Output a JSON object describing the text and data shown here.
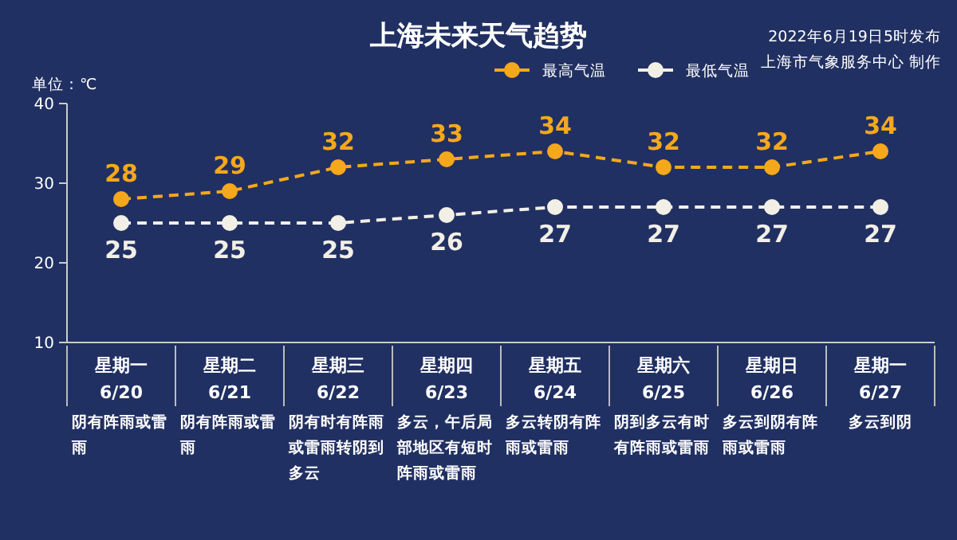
{
  "chart_data": {
    "type": "line",
    "title": "上海未来天气趋势",
    "subtitle": "2022年6月19日5时发布",
    "ylabel": "单位：℃",
    "annotations": [
      "上海市气象服务中心 制作",
      "阴有阵雨或雷雨",
      "阴有阵雨或雷雨",
      "阴有时有阵雨或雷雨转阴到多云",
      "多云，午后局部地区有短时阵雨或雷雨",
      "多云转阴有阵雨或雷雨",
      "阴到多云有时有阵雨或雷雨",
      "多云到阴有阵雨或雷雨",
      "多云到阴"
    ],
    "categories": [
      "星期一\n6/20",
      "星期二\n6/21",
      "星期三\n6/22",
      "星期四\n6/23",
      "星期五\n6/24",
      "星期六\n6/25",
      "星期日\n6/26",
      "星期一\n6/27"
    ],
    "series": [
      {
        "name": "最高气温",
        "color": "#f5a81c",
        "values": [
          28,
          29,
          32,
          33,
          34,
          32,
          32,
          34
        ]
      },
      {
        "name": "最低气温",
        "color": "#f2efe6",
        "values": [
          25,
          25,
          25,
          26,
          27,
          27,
          27,
          27
        ]
      }
    ],
    "ylim": [
      10,
      40
    ],
    "yticks": [
      10,
      20,
      30,
      40
    ],
    "grid": false,
    "legend": "top",
    "marker": "circle",
    "line_style": "dashed",
    "data_labels": true
  }
}
